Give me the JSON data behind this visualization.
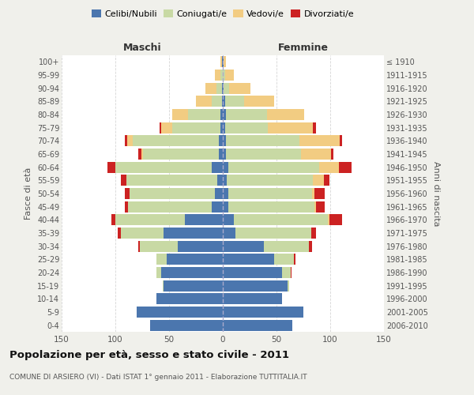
{
  "age_groups": [
    "0-4",
    "5-9",
    "10-14",
    "15-19",
    "20-24",
    "25-29",
    "30-34",
    "35-39",
    "40-44",
    "45-49",
    "50-54",
    "55-59",
    "60-64",
    "65-69",
    "70-74",
    "75-79",
    "80-84",
    "85-89",
    "90-94",
    "95-99",
    "100+"
  ],
  "birth_years": [
    "2006-2010",
    "2001-2005",
    "1996-2000",
    "1991-1995",
    "1986-1990",
    "1981-1985",
    "1976-1980",
    "1971-1975",
    "1966-1970",
    "1961-1965",
    "1956-1960",
    "1951-1955",
    "1946-1950",
    "1941-1945",
    "1936-1940",
    "1931-1935",
    "1926-1930",
    "1921-1925",
    "1916-1920",
    "1911-1915",
    "≤ 1910"
  ],
  "colors": {
    "celibe": "#4B76AE",
    "coniugato": "#C8D9A4",
    "vedovo": "#F2CC82",
    "divorziato": "#CC2222"
  },
  "maschi": {
    "celibe": [
      68,
      80,
      62,
      55,
      57,
      52,
      42,
      55,
      35,
      10,
      7,
      5,
      10,
      4,
      4,
      2,
      2,
      1,
      1,
      0,
      1
    ],
    "coniugato": [
      0,
      0,
      0,
      1,
      5,
      10,
      35,
      40,
      65,
      78,
      80,
      85,
      90,
      70,
      80,
      45,
      30,
      9,
      5,
      2,
      0
    ],
    "vedovo": [
      0,
      0,
      0,
      0,
      0,
      0,
      0,
      0,
      0,
      0,
      0,
      0,
      0,
      2,
      5,
      10,
      15,
      15,
      10,
      5,
      1
    ],
    "divorziato": [
      0,
      0,
      0,
      0,
      0,
      0,
      2,
      3,
      4,
      3,
      4,
      5,
      7,
      3,
      2,
      2,
      0,
      0,
      0,
      0,
      0
    ]
  },
  "femmine": {
    "nubile": [
      65,
      75,
      55,
      60,
      55,
      48,
      38,
      12,
      10,
      5,
      5,
      4,
      5,
      3,
      3,
      2,
      3,
      2,
      1,
      0,
      1
    ],
    "coniugata": [
      0,
      0,
      0,
      2,
      8,
      18,
      42,
      70,
      88,
      80,
      78,
      80,
      85,
      70,
      68,
      40,
      38,
      18,
      5,
      2,
      0
    ],
    "vedova": [
      0,
      0,
      0,
      0,
      0,
      0,
      0,
      0,
      1,
      2,
      2,
      10,
      18,
      28,
      38,
      42,
      35,
      28,
      20,
      8,
      2
    ],
    "divorziata": [
      0,
      0,
      0,
      0,
      1,
      2,
      3,
      5,
      12,
      8,
      10,
      5,
      12,
      2,
      2,
      3,
      0,
      0,
      0,
      0,
      0
    ]
  },
  "xlim": 150,
  "title": "Popolazione per età, sesso e stato civile - 2011",
  "subtitle": "COMUNE DI ARSIERO (VI) - Dati ISTAT 1° gennaio 2011 - Elaborazione TUTTITALIA.IT",
  "ylabel_left": "Fasce di età",
  "ylabel_right": "Anni di nascita",
  "xlabel_left": "Maschi",
  "xlabel_right": "Femmine",
  "bg_color": "#f0f0eb",
  "plot_bg": "#ffffff"
}
